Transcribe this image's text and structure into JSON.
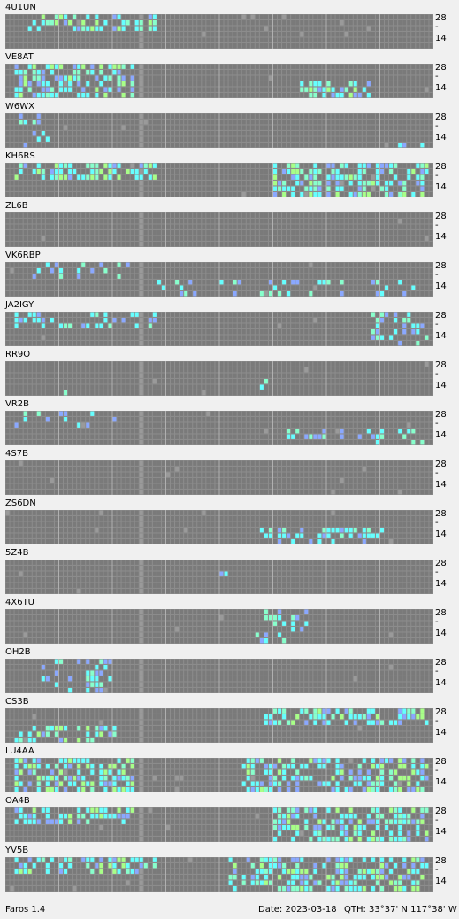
{
  "app": {
    "title": "Faros"
  },
  "band_labels": {
    "top": "28",
    "mid": "-",
    "bottom": "14"
  },
  "colors": {
    "background": "#f0f0f0",
    "grid_bg": "#8c8c8c",
    "cell_off": "#7a7a7a",
    "cell_gray": "#9a9a9a",
    "cell_aqua": "#66ffff",
    "cell_mint": "#88ffcc",
    "cell_green": "#a8ff88",
    "cell_blue": "#8aa8ff",
    "cell_violet": "#8866ff"
  },
  "legend_signal_levels": [
    "none",
    "aqua",
    "mint",
    "green",
    "blue",
    "violet"
  ],
  "beacons": [
    {
      "callsign": "4U1UN",
      "activity": "high",
      "hotspots": [
        [
          0,
          0.05,
          0.35
        ]
      ]
    },
    {
      "callsign": "VE8AT",
      "activity": "high",
      "hotspots": [
        [
          1,
          0.02,
          0.3
        ],
        [
          2,
          0.68,
          0.85
        ]
      ]
    },
    {
      "callsign": "W6WX",
      "activity": "low",
      "hotspots": [
        [
          1,
          0.02,
          0.1
        ],
        [
          2,
          0.88,
          0.97
        ]
      ]
    },
    {
      "callsign": "KH6RS",
      "activity": "high",
      "hotspots": [
        [
          0,
          0.02,
          0.35
        ],
        [
          1,
          0.62,
          0.98
        ]
      ]
    },
    {
      "callsign": "ZL6B",
      "activity": "none",
      "hotspots": []
    },
    {
      "callsign": "VK6RBP",
      "activity": "low",
      "hotspots": [
        [
          0,
          0.05,
          0.3
        ],
        [
          2,
          0.35,
          0.95
        ]
      ]
    },
    {
      "callsign": "JA2IGY",
      "activity": "medium",
      "hotspots": [
        [
          0,
          0.02,
          0.35
        ],
        [
          1,
          0.85,
          0.98
        ]
      ]
    },
    {
      "callsign": "RR9O",
      "activity": "low",
      "hotspots": [
        [
          1,
          0.12,
          0.14
        ],
        [
          2,
          0.58,
          0.62
        ]
      ]
    },
    {
      "callsign": "VR2B",
      "activity": "low",
      "hotspots": [
        [
          0,
          0.02,
          0.3
        ],
        [
          2,
          0.62,
          0.98
        ]
      ]
    },
    {
      "callsign": "4S7B",
      "activity": "none",
      "hotspots": []
    },
    {
      "callsign": "ZS6DN",
      "activity": "medium",
      "hotspots": [
        [
          2,
          0.58,
          0.9
        ]
      ]
    },
    {
      "callsign": "5Z4B",
      "activity": "low",
      "hotspots": [
        [
          0,
          0.5,
          0.52
        ]
      ]
    },
    {
      "callsign": "4X6TU",
      "activity": "low",
      "hotspots": [
        [
          1,
          0.58,
          0.7
        ]
      ]
    },
    {
      "callsign": "OH2B",
      "activity": "low",
      "hotspots": [
        [
          1,
          0.08,
          0.24
        ]
      ]
    },
    {
      "callsign": "CS3B",
      "activity": "high",
      "hotspots": [
        [
          0,
          0.6,
          0.98
        ],
        [
          2,
          0.02,
          0.25
        ]
      ]
    },
    {
      "callsign": "LU4AA",
      "activity": "high",
      "hotspots": [
        [
          0,
          0.02,
          0.3
        ],
        [
          1,
          0.55,
          0.98
        ],
        [
          2,
          0.02,
          0.3
        ]
      ]
    },
    {
      "callsign": "OA4B",
      "activity": "high",
      "hotspots": [
        [
          0,
          0.02,
          0.3
        ],
        [
          1,
          0.62,
          0.98
        ]
      ]
    },
    {
      "callsign": "YV5B",
      "activity": "high",
      "hotspots": [
        [
          0,
          0.02,
          0.35
        ],
        [
          1,
          0.52,
          0.98
        ]
      ]
    }
  ],
  "status": {
    "app": "Faros 1.4",
    "date": "Date: 2023-03-18",
    "qth": "QTH: 33°37' N  117°38' W"
  }
}
